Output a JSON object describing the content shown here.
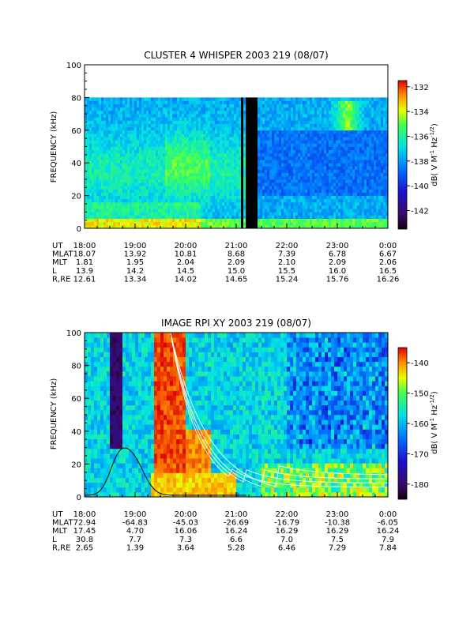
{
  "chart_data": [
    {
      "type": "heatmap",
      "title": "CLUSTER 4 WHISPER 2003 219 (08/07)",
      "ylabel": "FREQUENCY (kHz)",
      "ylim": [
        0,
        100
      ],
      "yticks": [
        "0",
        "20",
        "40",
        "60",
        "80",
        "100"
      ],
      "xticks": [
        "18:00",
        "19:00",
        "20:00",
        "21:00",
        "22:00",
        "23:00",
        "0:00"
      ],
      "colorbar": {
        "label": "dB( V M^-1 Hz^-1/2)",
        "range": [
          -143.5,
          -131.5
        ],
        "ticks": [
          "-132",
          "-134",
          "-136",
          "-138",
          "-140",
          "-142"
        ]
      },
      "data_gaps_hours_ut": [
        [
          21.1,
          21.13
        ],
        [
          21.2,
          21.4
        ]
      ],
      "max_frequency_khz": 80,
      "ephemeris": [
        {
          "label": "UT",
          "values": [
            "18:00",
            "19:00",
            "20:00",
            "21:00",
            "22:00",
            "23:00",
            "0:00"
          ]
        },
        {
          "label": "MLAT",
          "values": [
            "18.07",
            "13.92",
            "10.81",
            "8.68",
            "7.39",
            "6.78",
            "6.67"
          ]
        },
        {
          "label": "MLT",
          "values": [
            "1.81",
            "1.95",
            "2.04",
            "2.09",
            "2.10",
            "2.09",
            "2.06"
          ]
        },
        {
          "label": "L",
          "values": [
            "13.9",
            "14.2",
            "14.5",
            "15.0",
            "15.5",
            "16.0",
            "16.5"
          ]
        },
        {
          "label": "R,RE",
          "values": [
            "12.61",
            "13.34",
            "14.02",
            "14.65",
            "15.24",
            "15.76",
            "16.26"
          ]
        }
      ]
    },
    {
      "type": "heatmap",
      "title": "IMAGE RPI XY 2003 219 (08/07)",
      "ylabel": "FREQUENCY (kHz)",
      "ylim": [
        0,
        100
      ],
      "yticks": [
        "0",
        "20",
        "40",
        "60",
        "80",
        "100"
      ],
      "xticks": [
        "18:00",
        "19:00",
        "20:00",
        "21:00",
        "22:00",
        "23:00",
        "0:00"
      ],
      "colorbar": {
        "label": "dB( V M^-1 Hz^-1/2)",
        "range": [
          -185,
          -135
        ],
        "ticks": [
          "-140",
          "-150",
          "-160",
          "-170",
          "-180"
        ]
      },
      "ephemeris": [
        {
          "label": "UT",
          "values": [
            "18:00",
            "19:00",
            "20:00",
            "21:00",
            "22:00",
            "23:00",
            "0:00"
          ]
        },
        {
          "label": "MLAT",
          "values": [
            "72.94",
            "-64.83",
            "-45.03",
            "-26.69",
            "-16.79",
            "-10.38",
            "-6.05"
          ]
        },
        {
          "label": "MLT",
          "values": [
            "17.45",
            "4.70",
            "16.06",
            "16.24",
            "16.29",
            "16.29",
            "16.24"
          ]
        },
        {
          "label": "L",
          "values": [
            "30.8",
            "7.7",
            "7.3",
            "6.6",
            "7.0",
            "7.5",
            "7.9"
          ]
        },
        {
          "label": "R,RE",
          "values": [
            "2.65",
            "1.39",
            "3.64",
            "5.28",
            "6.46",
            "7.29",
            "7.84"
          ]
        }
      ]
    }
  ]
}
